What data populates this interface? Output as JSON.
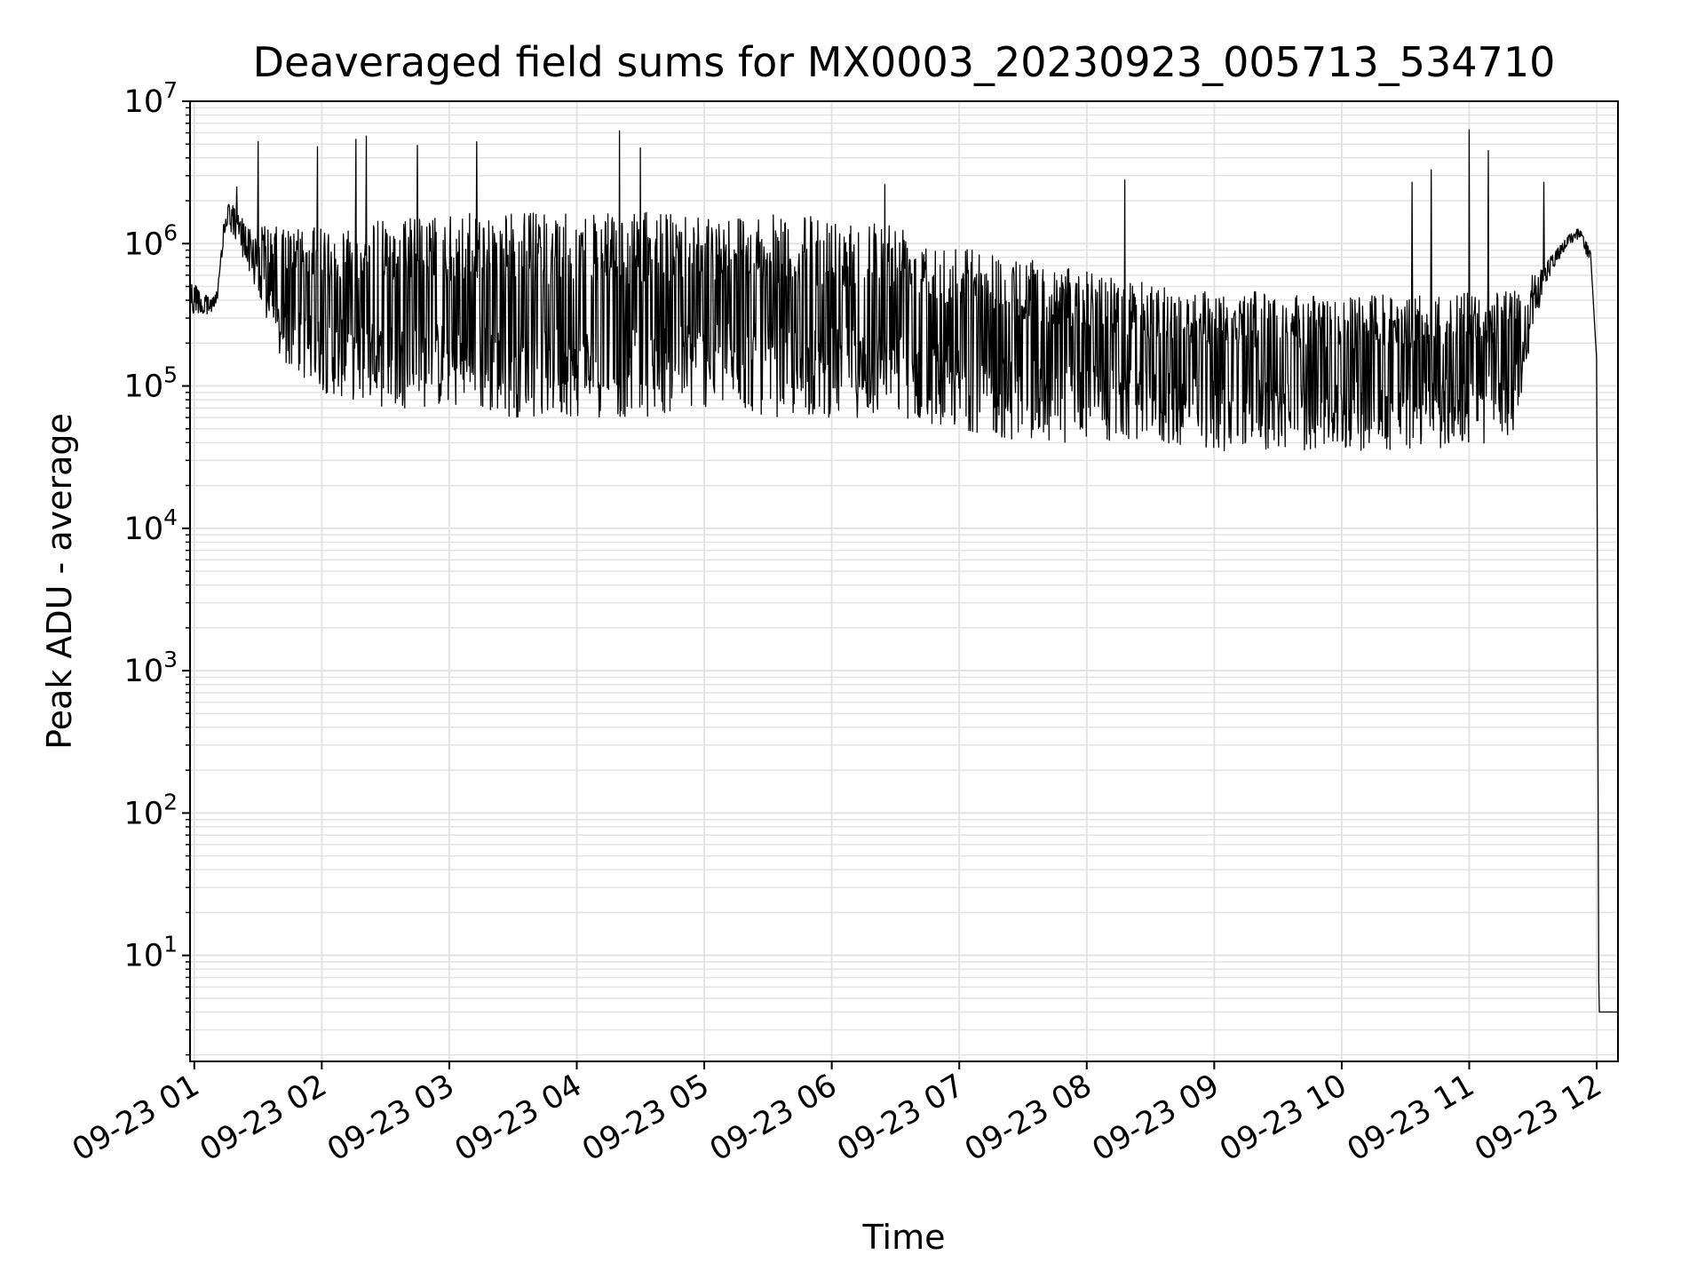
{
  "chart_data": {
    "type": "line",
    "title": "Deaveraged field sums for MX0003_20230923_005713_534710",
    "xlabel": "Time",
    "ylabel": "Peak ADU - average",
    "yscale": "log",
    "ylim": [
      1.8,
      10000000
    ],
    "xlim": [
      "09-23 00:58",
      "09-23 12:10"
    ],
    "grid": true,
    "line_color": "#000000",
    "x_ticks": [
      "09-23 01",
      "09-23 02",
      "09-23 03",
      "09-23 04",
      "09-23 05",
      "09-23 06",
      "09-23 07",
      "09-23 08",
      "09-23 09",
      "09-23 10",
      "09-23 11",
      "09-23 12"
    ],
    "y_ticks": [
      {
        "base": "10",
        "exp": "1"
      },
      {
        "base": "10",
        "exp": "2"
      },
      {
        "base": "10",
        "exp": "3"
      },
      {
        "base": "10",
        "exp": "4"
      },
      {
        "base": "10",
        "exp": "5"
      },
      {
        "base": "10",
        "exp": "6"
      },
      {
        "base": "10",
        "exp": "7"
      }
    ],
    "series": [
      {
        "x": [
          "09-23 00:58",
          "09-23 01:03",
          "09-23 01:08",
          "09-23 01:11",
          "09-23 01:15",
          "09-23 01:25",
          "09-23 01:40",
          "09-23 02:00",
          "09-23 02:30",
          "09-23 03:00",
          "09-23 03:30",
          "09-23 04:00",
          "09-23 04:30",
          "09-23 05:00",
          "09-23 05:15",
          "09-23 05:30",
          "09-23 06:00",
          "09-23 06:30",
          "09-23 07:00",
          "09-23 07:30",
          "09-23 08:00",
          "09-23 08:30",
          "09-23 09:00",
          "09-23 09:30",
          "09-23 10:00",
          "09-23 10:30",
          "09-23 11:00",
          "09-23 11:20",
          "09-23 11:35",
          "09-23 11:45",
          "09-23 11:52",
          "09-23 11:57",
          "09-23 12:00",
          "09-23 12:01",
          "09-23 12:02",
          "09-23 12:10"
        ],
        "upper": [
          700000,
          450000,
          420000,
          500000,
          2100000,
          1400000,
          1300000,
          1300000,
          1500000,
          1600000,
          1700000,
          1600000,
          1650000,
          1700000,
          1650000,
          1600000,
          1550000,
          1500000,
          1000000,
          800000,
          650000,
          520000,
          480000,
          450000,
          430000,
          440000,
          450000,
          460000,
          700000,
          1100000,
          1300000,
          900000,
          150000,
          4,
          4,
          4
        ],
        "lower": [
          300000,
          320000,
          320000,
          380000,
          1300000,
          700000,
          150000,
          90000,
          70000,
          70000,
          60000,
          60000,
          60000,
          70000,
          70000,
          60000,
          60000,
          60000,
          50000,
          40000,
          40000,
          40000,
          35000,
          35000,
          35000,
          35000,
          38000,
          40000,
          500000,
          900000,
          1100000,
          700000,
          100000,
          4,
          4,
          4
        ],
        "spikes": [
          [
            "09-23 01:20",
            2500000
          ],
          [
            "09-23 01:30",
            5200000
          ],
          [
            "09-23 01:58",
            4800000
          ],
          [
            "09-23 02:16",
            5400000
          ],
          [
            "09-23 02:21",
            5700000
          ],
          [
            "09-23 02:45",
            4900000
          ],
          [
            "09-23 03:13",
            5200000
          ],
          [
            "09-23 04:20",
            6200000
          ],
          [
            "09-23 04:30",
            4700000
          ],
          [
            "09-23 06:25",
            2600000
          ],
          [
            "09-23 08:18",
            2800000
          ],
          [
            "09-23 10:33",
            2700000
          ],
          [
            "09-23 10:42",
            3300000
          ],
          [
            "09-23 11:00",
            6300000
          ],
          [
            "09-23 11:09",
            4500000
          ],
          [
            "09-23 11:35",
            2700000
          ]
        ]
      }
    ]
  }
}
